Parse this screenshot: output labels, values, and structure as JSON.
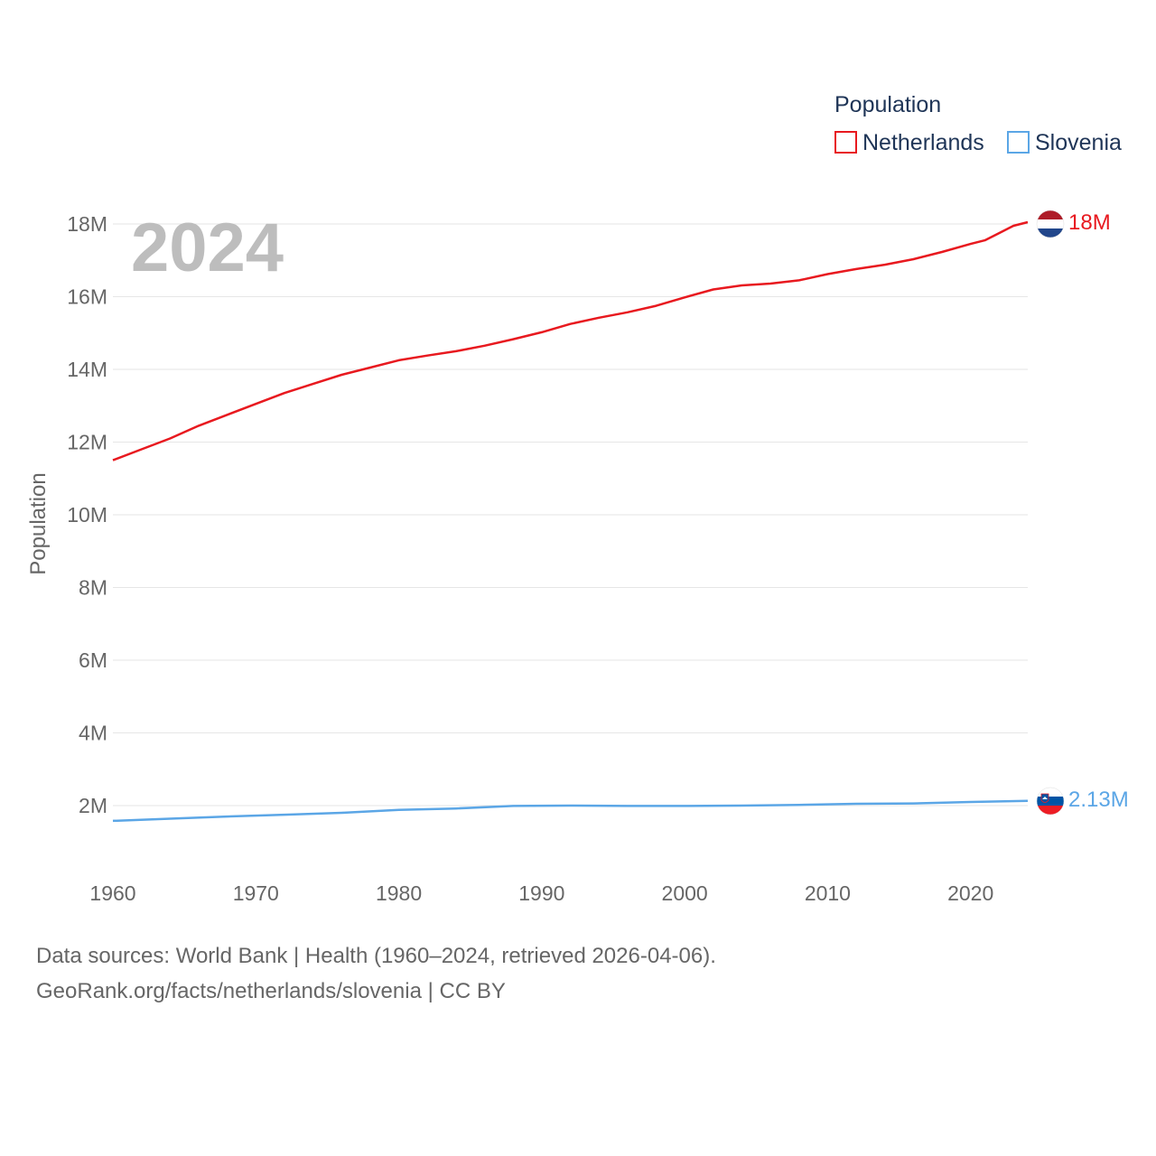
{
  "chart_data": {
    "type": "line",
    "ylabel": "Population",
    "xlim": [
      1960,
      2024
    ],
    "ylim": [
      0,
      18000000
    ],
    "x_ticks": [
      1960,
      1970,
      1980,
      1990,
      2000,
      2010,
      2020
    ],
    "x_tick_labels": [
      "1960",
      "1970",
      "1980",
      "1990",
      "2000",
      "2010",
      "2020"
    ],
    "y_ticks": [
      2000000,
      4000000,
      6000000,
      8000000,
      10000000,
      12000000,
      14000000,
      16000000,
      18000000
    ],
    "y_tick_labels": [
      "2M",
      "4M",
      "6M",
      "8M",
      "10M",
      "12M",
      "14M",
      "16M",
      "18M"
    ],
    "year_overlay": "2024",
    "legend": {
      "title": "Population",
      "position": "top-right"
    },
    "grid": true,
    "series": [
      {
        "name": "Netherlands",
        "color": "#e8191f",
        "end_label": "18M",
        "flag_icon": "netherlands-flag-icon",
        "x": [
          1960,
          1962,
          1964,
          1966,
          1968,
          1970,
          1972,
          1974,
          1976,
          1978,
          1980,
          1982,
          1984,
          1986,
          1988,
          1990,
          1992,
          1994,
          1996,
          1998,
          2000,
          2002,
          2004,
          2006,
          2008,
          2010,
          2012,
          2014,
          2016,
          2018,
          2020,
          2021,
          2022,
          2023,
          2024
        ],
        "values": [
          11500000,
          11800000,
          12100000,
          12450000,
          12750000,
          13050000,
          13350000,
          13600000,
          13850000,
          14050000,
          14250000,
          14380000,
          14500000,
          14650000,
          14830000,
          15020000,
          15250000,
          15420000,
          15570000,
          15750000,
          15980000,
          16200000,
          16310000,
          16360000,
          16450000,
          16620000,
          16760000,
          16880000,
          17030000,
          17230000,
          17450000,
          17550000,
          17750000,
          17950000,
          18050000
        ]
      },
      {
        "name": "Slovenia",
        "color": "#5ba6e6",
        "end_label": "2.13M",
        "flag_icon": "slovenia-flag-icon",
        "x": [
          1960,
          1964,
          1968,
          1972,
          1976,
          1980,
          1984,
          1988,
          1992,
          1996,
          2000,
          2004,
          2008,
          2012,
          2016,
          2020,
          2024
        ],
        "values": [
          1580000,
          1640000,
          1700000,
          1750000,
          1800000,
          1880000,
          1920000,
          1990000,
          2000000,
          1990000,
          1990000,
          2000000,
          2020000,
          2050000,
          2060000,
          2100000,
          2130000
        ]
      }
    ]
  },
  "footer": {
    "sources": "Data sources: World Bank | Health (1960–2024, retrieved 2026-04-06).",
    "credit": "GeoRank.org/facts/netherlands/slovenia | CC BY"
  }
}
